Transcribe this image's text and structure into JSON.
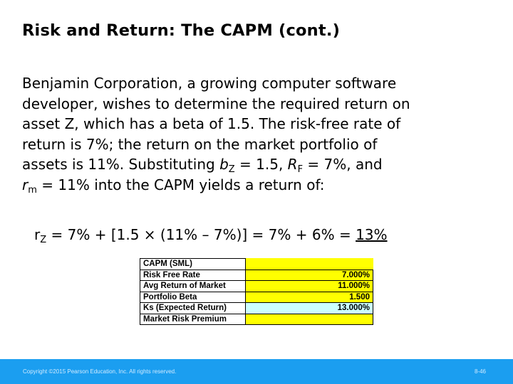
{
  "slide": {
    "title": "Risk and Return: The CAPM (cont.)",
    "body": {
      "line1": "Benjamin Corporation, a growing computer software",
      "line2": "developer, wishes to determine the required return on",
      "line3": "asset Z, which has a beta of 1.5. The risk-free rate of",
      "line4": "return is 7%; the return on the market portfolio of",
      "line5_a": "assets is 11%. Substituting ",
      "b_letter": "b",
      "b_sub": "Z",
      "line5_b": " = 1.5, ",
      "r_letter": "R",
      "r_sub": "F",
      "line5_c": " = 7%, and",
      "rm_letter": "r",
      "rm_sub": "m",
      "line6": " = 11% into the CAPM yields a return of:"
    },
    "formula": {
      "lhs_letter": "r",
      "lhs_sub": "Z",
      "expr": " = 7% + [1.5 × (11% – 7%)] = 7% + 6% = ",
      "result": "13%"
    }
  },
  "capm_table": {
    "header": "CAPM (SML)",
    "rows": [
      {
        "label": "Risk Free Rate",
        "value": "7.000%"
      },
      {
        "label": "Avg Return of Market",
        "value": "11.000%"
      },
      {
        "label": "Portfolio Beta",
        "value": "1.500"
      },
      {
        "label": "Ks (Expected Return)",
        "value": "13.000%"
      },
      {
        "label": "Market Risk Premium",
        "value": ""
      }
    ],
    "colors": {
      "input_fill": "#ffff00",
      "output_fill": "#ccffff"
    }
  },
  "footer": {
    "copyright": "Copyright ©2015 Pearson Education, Inc. All rights reserved.",
    "page": "8-46",
    "bar_color": "#1b9ef0"
  }
}
